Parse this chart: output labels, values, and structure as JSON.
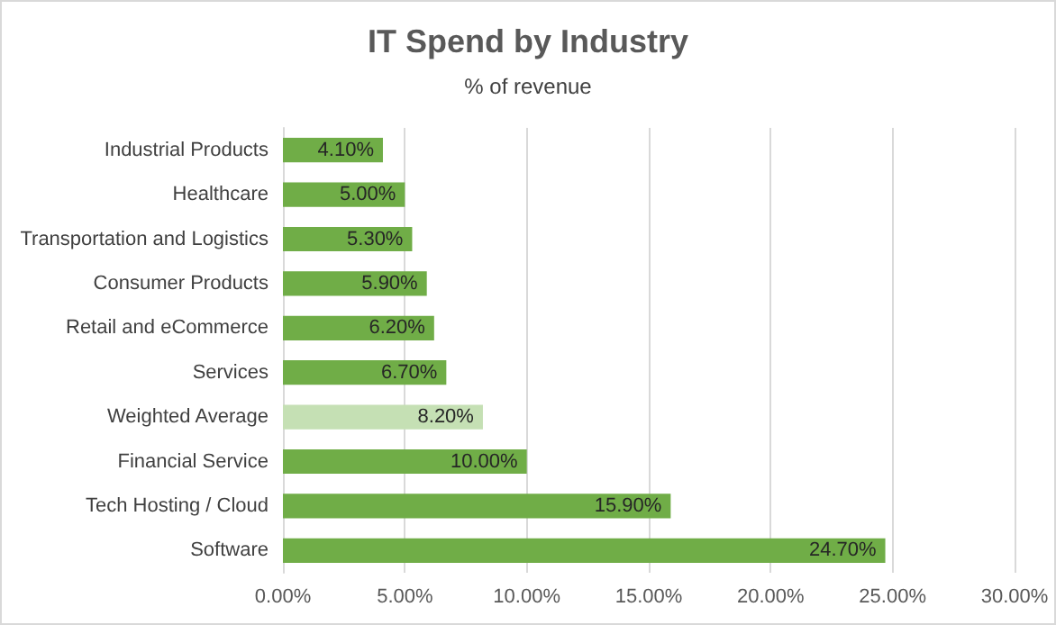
{
  "chart_data": {
    "type": "bar",
    "orientation": "horizontal",
    "title": "IT Spend by Industry",
    "subtitle": "% of revenue",
    "categories": [
      "Industrial Products",
      "Healthcare",
      "Transportation and Logistics",
      "Consumer Products",
      "Retail and eCommerce",
      "Services",
      "Weighted Average",
      "Financial Service",
      "Tech Hosting / Cloud",
      "Software"
    ],
    "values": [
      4.1,
      5.0,
      5.3,
      5.9,
      6.2,
      6.7,
      8.2,
      10.0,
      15.9,
      24.7
    ],
    "value_labels": [
      "4.10%",
      "5.00%",
      "5.30%",
      "5.90%",
      "6.20%",
      "6.70%",
      "8.20%",
      "10.00%",
      "15.90%",
      "24.70%"
    ],
    "colors": [
      "#70ad47",
      "#70ad47",
      "#70ad47",
      "#70ad47",
      "#70ad47",
      "#70ad47",
      "#c5e0b4",
      "#70ad47",
      "#70ad47",
      "#70ad47"
    ],
    "xlim": [
      0,
      30
    ],
    "xticks": [
      {
        "value": 0,
        "label": "0.00%"
      },
      {
        "value": 5,
        "label": "5.00%"
      },
      {
        "value": 10,
        "label": "10.00%"
      },
      {
        "value": 15,
        "label": "15.00%"
      },
      {
        "value": 20,
        "label": "20.00%"
      },
      {
        "value": 25,
        "label": "25.00%"
      },
      {
        "value": 30,
        "label": "30.00%"
      }
    ],
    "grid": "x"
  }
}
